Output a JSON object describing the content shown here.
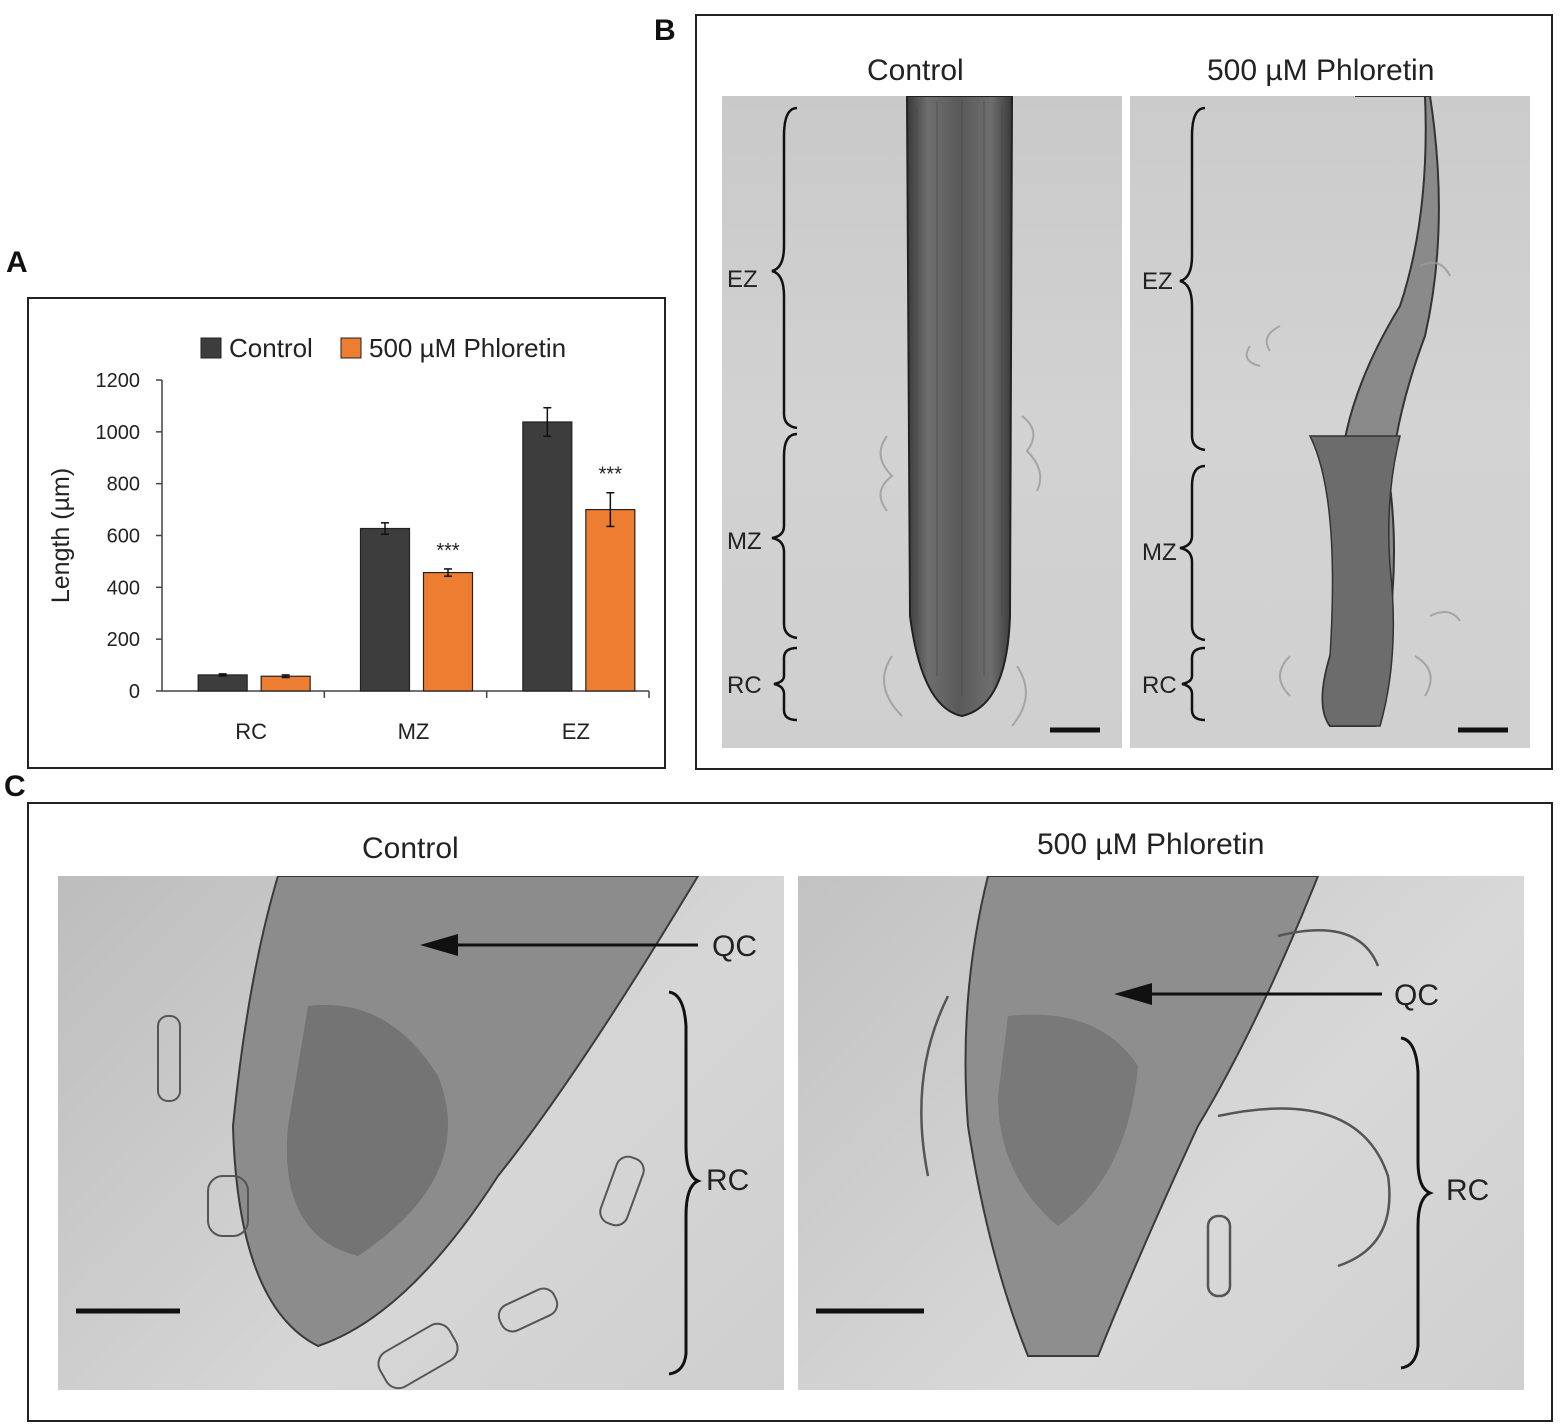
{
  "panels": {
    "A": "A",
    "B": "B",
    "C": "C"
  },
  "chart_data": {
    "type": "bar",
    "categories": [
      "RC",
      "MZ",
      "EZ"
    ],
    "series": [
      {
        "name": "Control",
        "color": "#3d3d3d",
        "values": [
          62,
          627,
          1038
        ],
        "errors": [
          4,
          22,
          55
        ]
      },
      {
        "name": "500 µM Phloretin",
        "color": "#ed7d31",
        "values": [
          57,
          457,
          700
        ],
        "errors": [
          5,
          14,
          65
        ]
      }
    ],
    "significance": [
      "",
      "***",
      "***"
    ],
    "ylabel": "Length (µm)",
    "xlabel": "",
    "ylim": [
      0,
      1200
    ],
    "yticks": [
      0,
      200,
      400,
      600,
      800,
      1000,
      1200
    ],
    "legend": "top-center",
    "grid": false
  },
  "panel_b": {
    "control_title": "Control",
    "treated_title": "500 µM Phloretin",
    "zones": [
      "EZ",
      "MZ",
      "RC"
    ]
  },
  "panel_c": {
    "control_title": "Control",
    "treated_title": "500 µM Phloretin",
    "qc_label": "QC",
    "rc_label": "RC"
  }
}
